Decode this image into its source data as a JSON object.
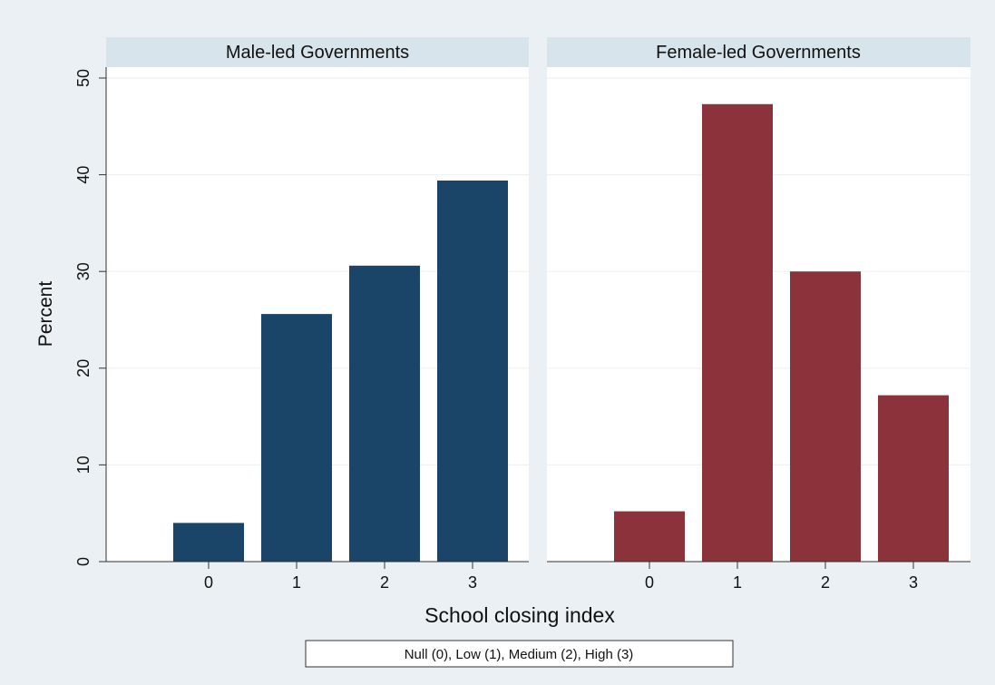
{
  "chart_data": {
    "type": "bar",
    "ylabel": "Percent",
    "xlabel": "School closing index",
    "note": "Null (0), Low (1), Medium (2), High (3)",
    "ylim": [
      0,
      50
    ],
    "yticks": [
      "0",
      "10",
      "20",
      "30",
      "40",
      "50"
    ],
    "categories": [
      "0",
      "1",
      "2",
      "3"
    ],
    "grid": true,
    "panels": [
      {
        "title": "Male-led Governments",
        "color": "#1a4468",
        "values": [
          4.0,
          25.6,
          30.6,
          39.4
        ]
      },
      {
        "title": "Female-led Governments",
        "color": "#8b323a",
        "values": [
          5.2,
          47.3,
          30.0,
          17.2
        ]
      }
    ]
  }
}
